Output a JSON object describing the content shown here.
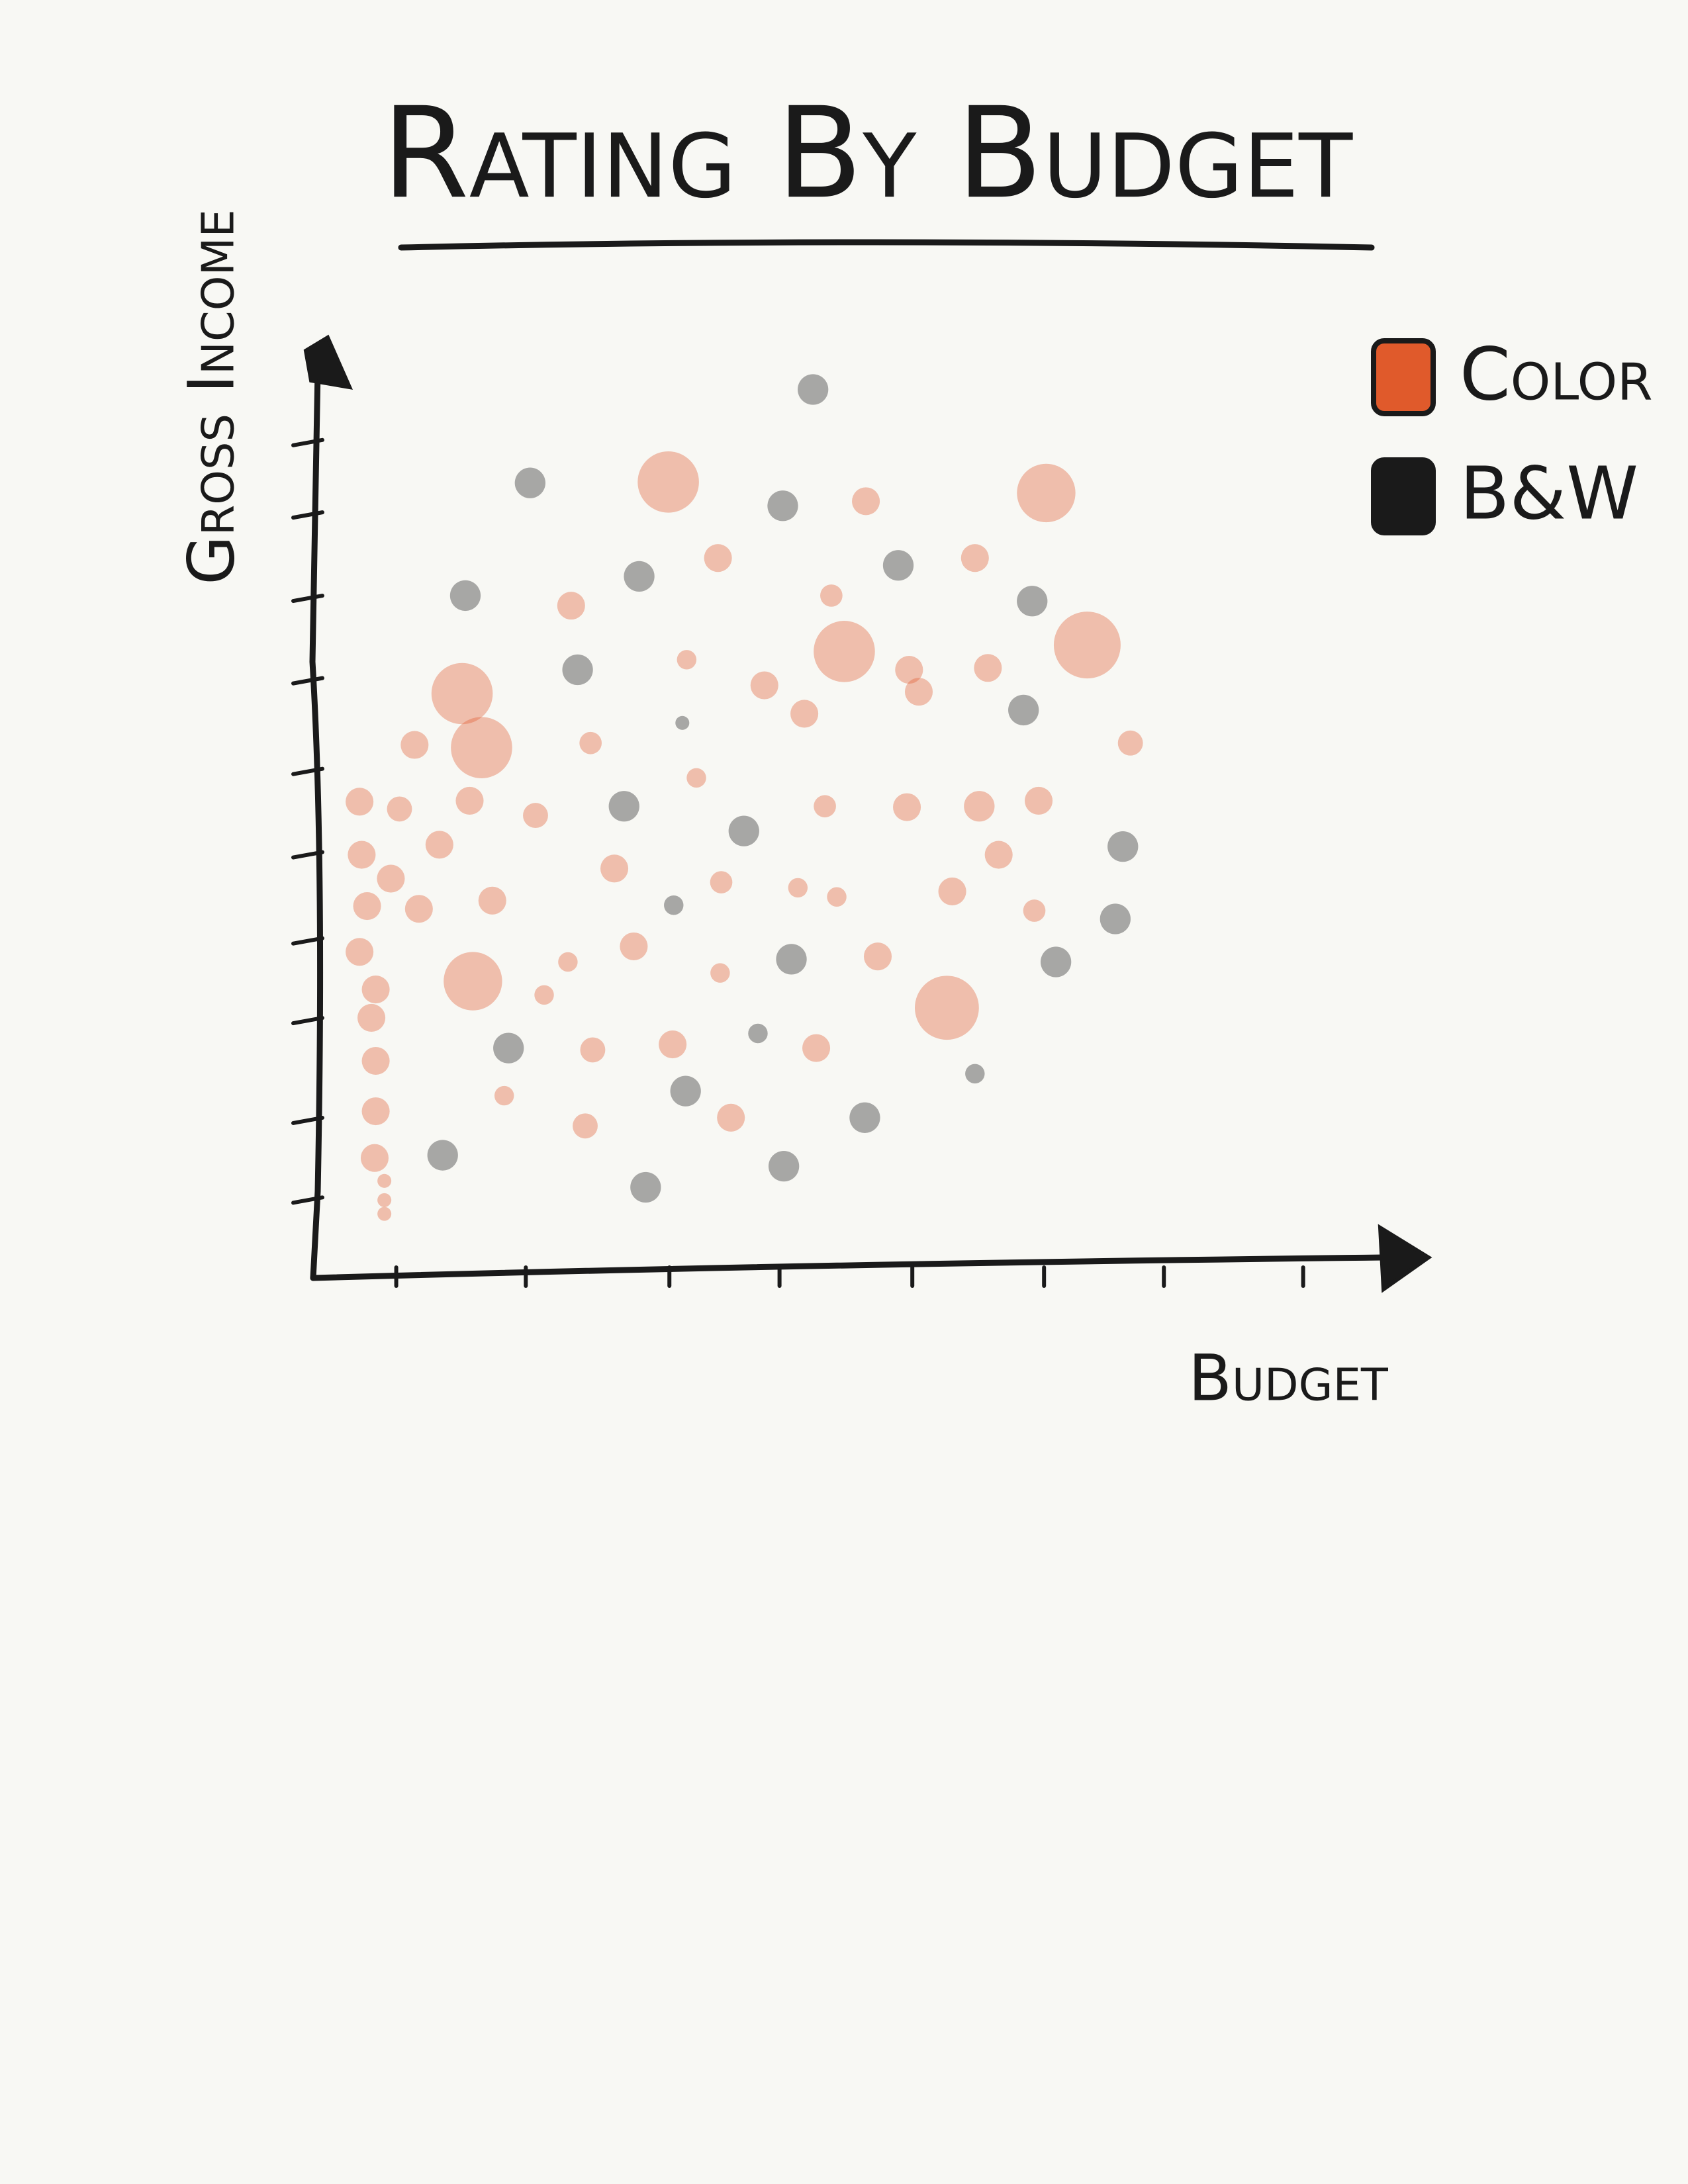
{
  "chart_data": {
    "type": "bubble",
    "title": "Rating By Budget",
    "x_label": "Budget",
    "y_label": "Gross Income",
    "xlim": [
      0,
      100
    ],
    "ylim": [
      0,
      100
    ],
    "xticks": [
      7.7,
      19.7,
      33.0,
      43.2,
      55.5,
      67.7,
      78.8,
      91.7
    ],
    "yticks": [
      8.5,
      17.2,
      28.1,
      36.8,
      46.2,
      55.3,
      65.2,
      74.2,
      83.3,
      91.2
    ],
    "legend": "top-right",
    "series": [
      {
        "name": "Color",
        "color": "#e05a2b",
        "x": [
          32.9,
          67.9,
          49.2,
          71.7,
          13.8,
          15.6,
          14.8,
          58.7,
          51.2,
          37.5,
          61.3,
          23.9,
          48.0,
          34.6,
          41.8,
          55.2,
          56.1,
          62.5,
          45.5,
          9.4,
          75.7,
          25.7,
          35.5,
          4.3,
          8.0,
          14.5,
          20.6,
          47.4,
          55.0,
          61.7,
          67.2,
          11.7,
          4.5,
          27.9,
          63.5,
          7.2,
          37.8,
          44.9,
          48.5,
          59.2,
          16.6,
          5.0,
          9.8,
          66.8,
          29.7,
          52.3,
          4.3,
          23.6,
          37.7,
          5.8,
          21.4,
          5.4,
          33.3,
          25.9,
          46.6,
          5.8,
          17.7,
          38.7,
          25.2,
          5.8,
          5.7,
          6.6,
          6.6,
          6.6
        ],
        "values": [
          86.9,
          85.7,
          68.4,
          69.1,
          63.8,
          57.9,
          32.4,
          29.5,
          84.8,
          78.6,
          78.6,
          73.4,
          74.5,
          67.5,
          64.7,
          66.4,
          64.0,
          66.6,
          61.6,
          58.2,
          58.4,
          58.4,
          54.6,
          52.0,
          51.2,
          52.1,
          50.5,
          51.5,
          51.4,
          51.5,
          52.1,
          47.3,
          46.2,
          44.7,
          46.2,
          43.6,
          43.2,
          42.6,
          41.6,
          42.2,
          41.2,
          40.6,
          40.3,
          40.1,
          36.2,
          35.1,
          35.6,
          34.5,
          33.3,
          31.5,
          30.9,
          28.4,
          25.5,
          24.9,
          25.1,
          23.7,
          19.9,
          17.5,
          16.6,
          18.2,
          13.1,
          10.6,
          8.5,
          7.0
        ],
        "sizes": [
          22,
          21,
          22,
          24,
          22,
          22,
          21,
          23,
          10,
          10,
          10,
          10,
          8,
          7,
          10,
          10,
          10,
          10,
          10,
          10,
          9,
          8,
          7,
          10,
          9,
          10,
          9,
          8,
          10,
          11,
          10,
          10,
          10,
          10,
          10,
          10,
          8,
          7,
          7,
          10,
          10,
          10,
          10,
          8,
          10,
          10,
          10,
          7,
          7,
          10,
          7,
          10,
          10,
          9,
          10,
          10,
          7,
          10,
          9,
          10,
          10,
          5,
          5,
          5
        ]
      },
      {
        "name": "B&W",
        "color": "#1a1a1a",
        "x": [
          46.3,
          20.1,
          43.5,
          30.2,
          54.2,
          14.1,
          66.6,
          24.5,
          65.8,
          28.8,
          39.9,
          75.0,
          74.3,
          33.4,
          44.3,
          68.8,
          18.1,
          41.2,
          61.3,
          34.5,
          51.1,
          12.0,
          43.6,
          30.8,
          34.2
        ],
        "values": [
          97.0,
          86.8,
          84.3,
          76.6,
          77.8,
          74.5,
          73.9,
          66.4,
          62.0,
          51.5,
          48.8,
          47.1,
          39.2,
          40.7,
          34.8,
          34.5,
          25.1,
          26.7,
          22.3,
          20.4,
          17.5,
          13.4,
          12.2,
          9.9,
          60.6
        ],
        "sizes": [
          11,
          11,
          11,
          11,
          11,
          11,
          11,
          11,
          11,
          11,
          11,
          11,
          11,
          7,
          11,
          11,
          11,
          7,
          7,
          11,
          11,
          11,
          11,
          11,
          5
        ]
      }
    ]
  }
}
